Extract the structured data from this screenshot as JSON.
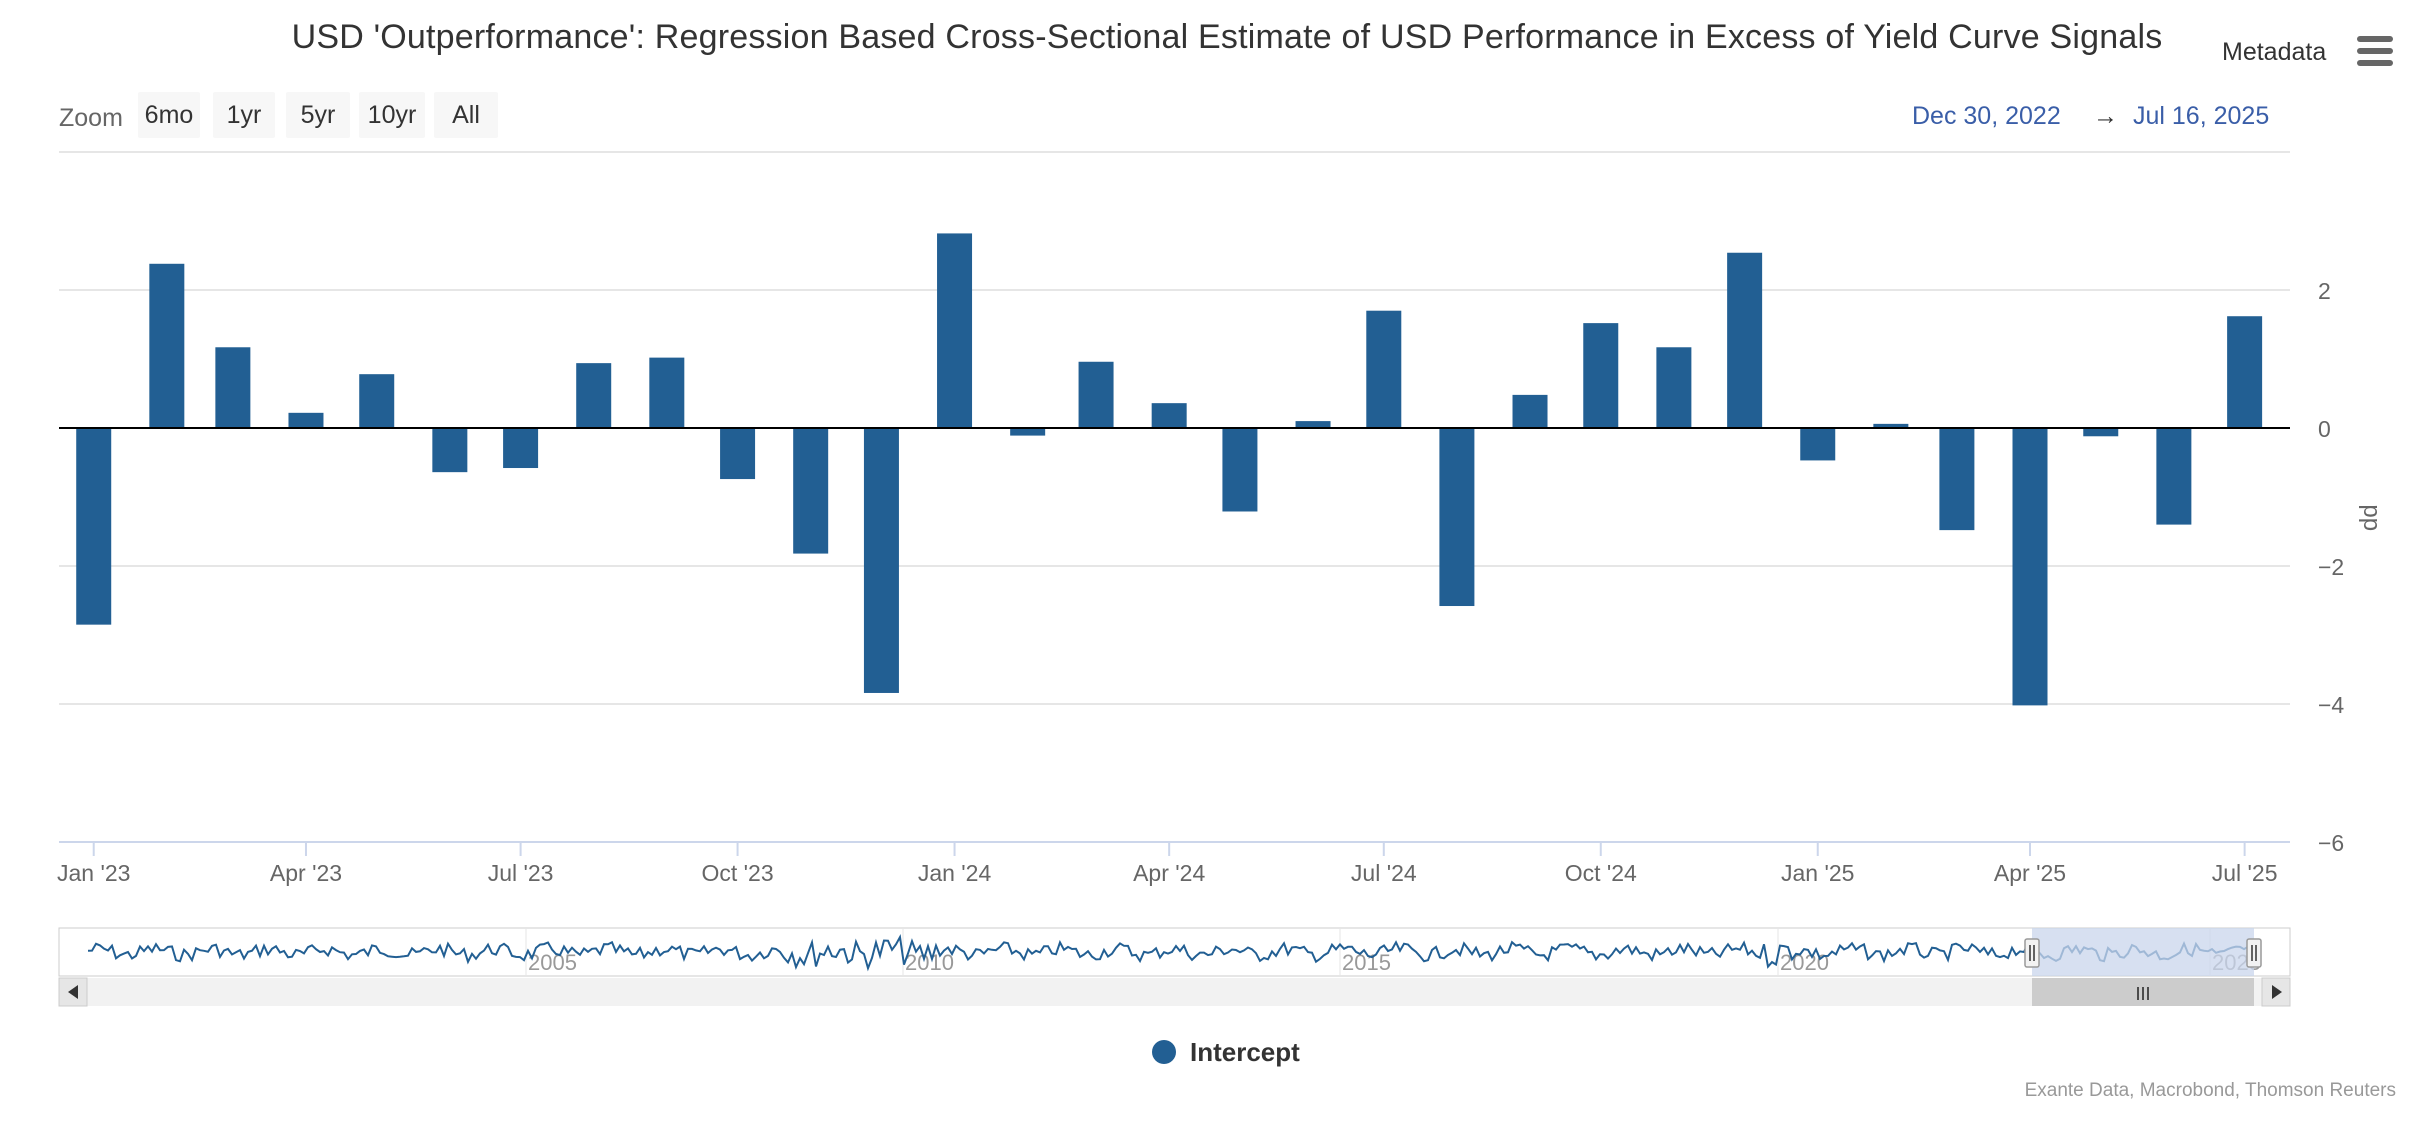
{
  "title": "USD 'Outperformance': Regression Based Cross-Sectional Estimate of USD Performance in Excess of Yield Curve Signals",
  "metadata_label": "Metadata",
  "menu_icon": "hamburger-menu-icon",
  "zoom": {
    "label": "Zoom",
    "buttons": [
      "6mo",
      "1yr",
      "5yr",
      "10yr",
      "All"
    ]
  },
  "range": {
    "from": "Dec 30, 2022",
    "arrow": "→",
    "to": "Jul 16, 2025"
  },
  "legend": {
    "label": "Intercept",
    "color": "#225f93"
  },
  "credits": "Exante Data, Macrobond, Thomson Reuters",
  "colors": {
    "bar": "#225f93",
    "navigator_line": "#225f93",
    "navigator_mask": "#c9d5ec",
    "grid": "#e6e6e6"
  },
  "chart_data": {
    "type": "bar",
    "title": "USD 'Outperformance': Regression Based Cross-Sectional Estimate of USD Performance in Excess of Yield Curve Signals",
    "ylabel": "pp",
    "ylim": [
      -6,
      4
    ],
    "y_ticks": [
      2,
      0,
      -2,
      -4,
      -6
    ],
    "y_tick_labels": [
      "2",
      "0",
      "−2",
      "−4",
      "−6"
    ],
    "grid": true,
    "legend_position": "bottom-center",
    "x_range": [
      "2022-12-30",
      "2025-07-16"
    ],
    "x_ticks": [
      {
        "date": "2023-01-01",
        "label": "Jan '23"
      },
      {
        "date": "2023-04-01",
        "label": "Apr '23"
      },
      {
        "date": "2023-07-01",
        "label": "Jul '23"
      },
      {
        "date": "2023-10-01",
        "label": "Oct '23"
      },
      {
        "date": "2024-01-01",
        "label": "Jan '24"
      },
      {
        "date": "2024-04-01",
        "label": "Apr '24"
      },
      {
        "date": "2024-07-01",
        "label": "Jul '24"
      },
      {
        "date": "2024-10-01",
        "label": "Oct '24"
      },
      {
        "date": "2025-01-01",
        "label": "Jan '25"
      },
      {
        "date": "2025-04-01",
        "label": "Apr '25"
      },
      {
        "date": "2025-07-01",
        "label": "Jul '25"
      }
    ],
    "series": [
      {
        "name": "Intercept",
        "x": [
          "2023-01-01",
          "2023-02-01",
          "2023-03-01",
          "2023-04-01",
          "2023-05-01",
          "2023-06-01",
          "2023-07-01",
          "2023-08-01",
          "2023-09-01",
          "2023-10-01",
          "2023-11-01",
          "2023-12-01",
          "2024-01-01",
          "2024-02-01",
          "2024-03-01",
          "2024-04-01",
          "2024-05-01",
          "2024-06-01",
          "2024-07-01",
          "2024-08-01",
          "2024-09-01",
          "2024-10-01",
          "2024-11-01",
          "2024-12-01",
          "2025-01-01",
          "2025-02-01",
          "2025-03-01",
          "2025-04-01",
          "2025-05-01",
          "2025-06-01",
          "2025-07-01"
        ],
        "values": [
          -2.85,
          2.38,
          1.17,
          0.22,
          0.78,
          -0.64,
          -0.58,
          0.94,
          1.02,
          -0.74,
          -1.82,
          -3.84,
          2.82,
          -0.11,
          0.96,
          0.36,
          -1.21,
          0.1,
          1.7,
          -2.58,
          0.48,
          1.52,
          1.17,
          2.54,
          -0.47,
          0.06,
          -1.48,
          -4.02,
          -0.12,
          -1.4,
          1.62
        ]
      }
    ],
    "navigator": {
      "x_labels": [
        "2005",
        "2010",
        "2015",
        "2020",
        "2025"
      ],
      "selected_range": [
        "2022-12-30",
        "2025-07-16"
      ],
      "scrollbar_grip": "III"
    }
  }
}
